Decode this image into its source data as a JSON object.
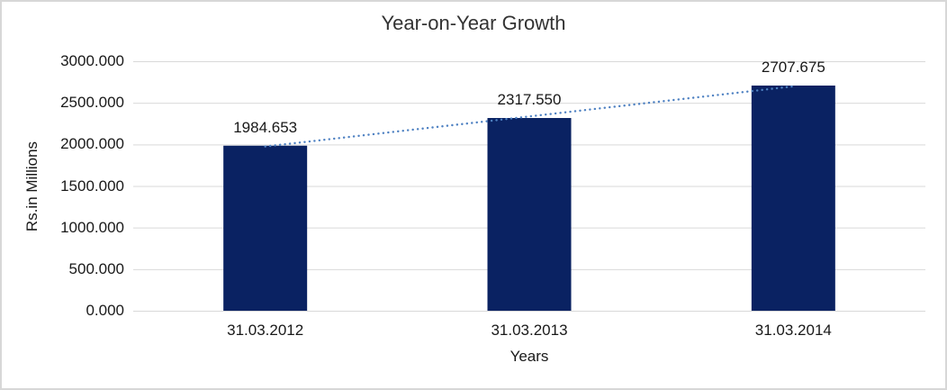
{
  "chart_data": {
    "type": "bar",
    "title": "Year-on-Year Growth",
    "xlabel": "Years",
    "ylabel": "Rs.in Millions",
    "categories": [
      "31.03.2012",
      "31.03.2013",
      "31.03.2014"
    ],
    "values": [
      1984.653,
      2317.55,
      2707.675
    ],
    "data_labels": [
      "1984.653",
      "2317.550",
      "2707.675"
    ],
    "y_ticks": [
      {
        "value": 3000,
        "label": "3000.000"
      },
      {
        "value": 2500,
        "label": "2500.000"
      },
      {
        "value": 2000,
        "label": "2000.000"
      },
      {
        "value": 1500,
        "label": "1500.000"
      },
      {
        "value": 1000,
        "label": "1000.000"
      },
      {
        "value": 500,
        "label": "500.000"
      },
      {
        "value": 0,
        "label": "0.000"
      }
    ],
    "ylim": [
      0,
      3000
    ],
    "grid": "horizontal",
    "legend": "none",
    "trendline": {
      "type": "linear",
      "style": "dotted"
    },
    "colors": {
      "bar": "#0A2262",
      "trendline": "#4E81C2",
      "gridline": "#D9D9D9",
      "text": "#191919",
      "border": "#D7D7D7"
    }
  }
}
